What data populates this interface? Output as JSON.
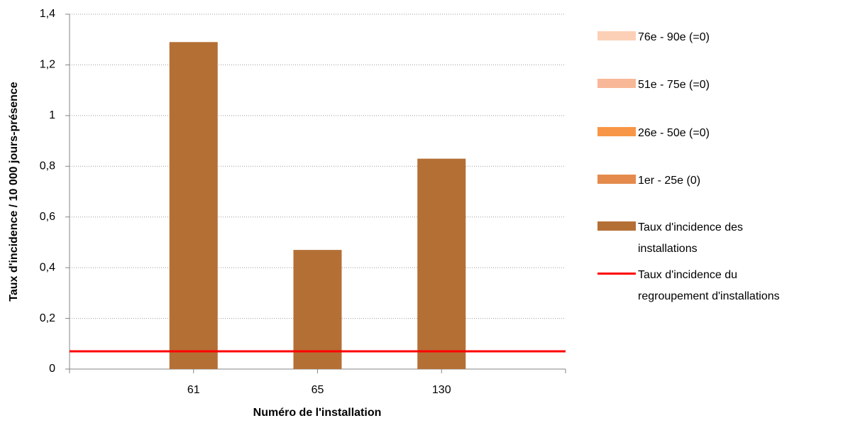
{
  "chart_data": {
    "type": "bar",
    "x_label": "Numéro de l'installation",
    "y_label": "Taux d'incidence  / 10 000 jours-présence",
    "categories": [
      null,
      "61",
      "65",
      "130",
      null
    ],
    "series": [
      {
        "name": "76e - 90e (=0)",
        "color": "#fbd0b6",
        "values": [
          null,
          0,
          0,
          0,
          null
        ]
      },
      {
        "name": "51e - 75e (=0)",
        "color": "#f8b898",
        "values": [
          null,
          0,
          0,
          0,
          null
        ]
      },
      {
        "name": "26e - 50e (=0)",
        "color": "#f79646",
        "values": [
          null,
          0,
          0,
          0,
          null
        ]
      },
      {
        "name": "1er - 25e (0)",
        "color": "#e48a4c",
        "values": [
          null,
          0,
          0,
          0,
          null
        ]
      },
      {
        "name": "Taux d'incidence des installations",
        "color": "#b46f35",
        "values": [
          null,
          1.29,
          0.47,
          0.83,
          null
        ]
      },
      {
        "name": "Taux d'incidence du regroupement d'installations",
        "color": "#ff0000",
        "type": "line",
        "values": [
          0.07,
          0.07,
          0.07,
          0.07,
          0.07
        ]
      }
    ],
    "ylim": [
      0,
      1.4
    ],
    "yticks": [
      0,
      {
        "value": 0.2,
        "label": "0,2"
      },
      {
        "value": 0.4,
        "label": "0,4"
      },
      {
        "value": 0.6,
        "label": "0,6"
      },
      {
        "value": 0.8,
        "label": "0,8"
      },
      1,
      {
        "value": 1.2,
        "label": "1,2"
      },
      {
        "value": 1.4,
        "label": "1,4"
      }
    ],
    "grid": true,
    "legend": "right"
  }
}
